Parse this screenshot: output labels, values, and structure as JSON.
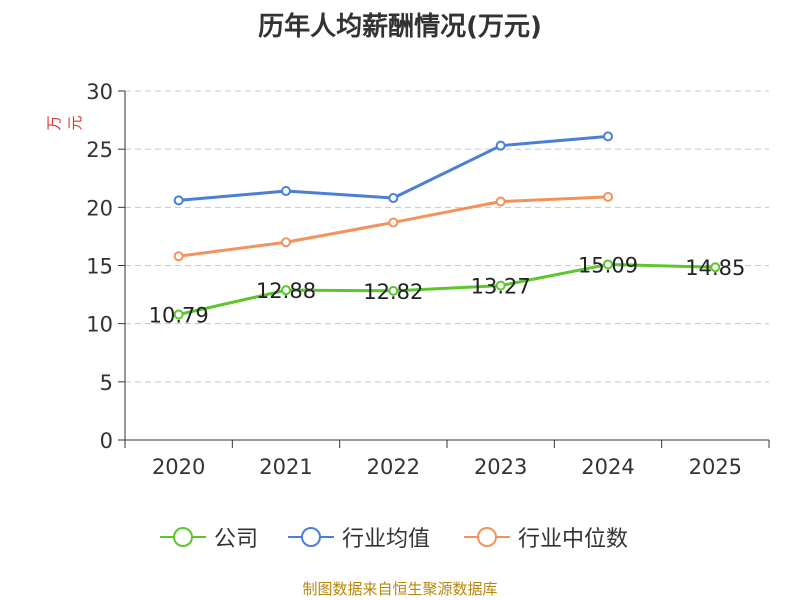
{
  "chart_data": {
    "type": "line",
    "title": "历年人均薪酬情况(万元)",
    "ylabel": "万元",
    "xlabel": "",
    "categories": [
      "2020",
      "2021",
      "2022",
      "2023",
      "2024",
      "2025"
    ],
    "ylim": [
      0,
      30
    ],
    "yticks": [
      0,
      5,
      10,
      15,
      20,
      25,
      30
    ],
    "grid": true,
    "legend_position": "bottom",
    "series": [
      {
        "name": "公司",
        "color": "#5cc72d",
        "values": [
          10.79,
          12.88,
          12.82,
          13.27,
          15.09,
          14.85
        ],
        "labels": [
          "10.79",
          "12.88",
          "12.82",
          "13.27",
          "15.09",
          "14.85"
        ]
      },
      {
        "name": "行业均值",
        "color": "#4a7fd9",
        "values": [
          20.6,
          21.4,
          20.8,
          25.3,
          26.1,
          null
        ]
      },
      {
        "name": "行业中位数",
        "color": "#f5915a",
        "values": [
          15.8,
          17.0,
          18.7,
          20.5,
          20.9,
          null
        ]
      }
    ]
  },
  "source_note": "制图数据来自恒生聚源数据库"
}
